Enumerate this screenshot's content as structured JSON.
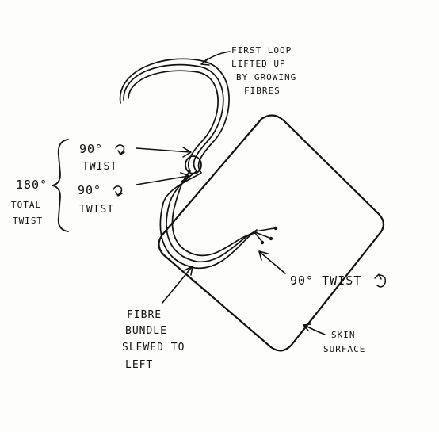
{
  "diagram": {
    "loop_label": [
      "FIRST LOOP",
      "LIFTED UP",
      "BY GROWING",
      "FIBRES"
    ],
    "twist_upper": [
      "90°",
      "TWIST"
    ],
    "twist_lower": [
      "90°",
      "TWIST"
    ],
    "total_twist": [
      "180°",
      "TOTAL",
      "TWIST"
    ],
    "twist_right": "90° TWIST",
    "bundle_label": [
      "FIBRE",
      "BUNDLE",
      "SLEWED TO",
      "LEFT"
    ],
    "skin_label": [
      "SKIN",
      "SURFACE"
    ],
    "ink_color": "#111111",
    "paper_color": "#fdfdfb"
  }
}
